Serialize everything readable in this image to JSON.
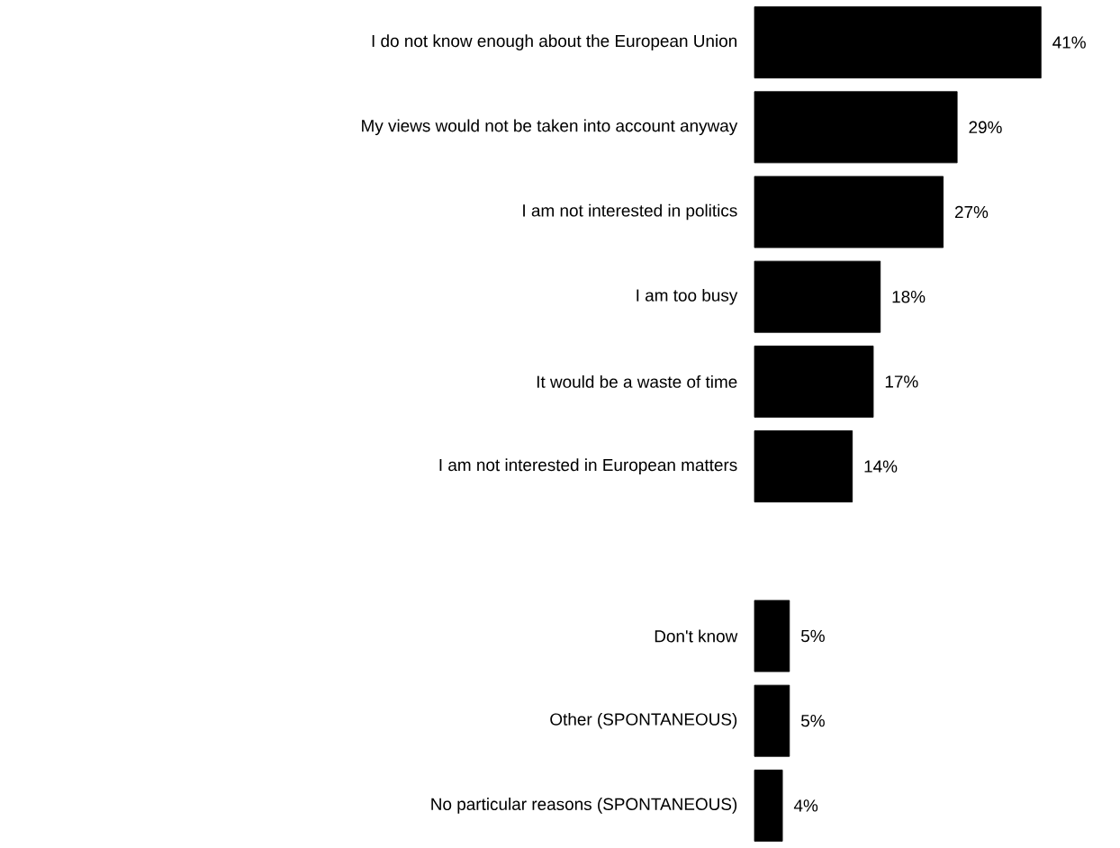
{
  "chart_data": {
    "type": "bar",
    "orientation": "horizontal",
    "color": "#000000",
    "categories": [
      "I do not know enough about the European Union",
      "My views would not be taken into account anyway",
      "I am not interested in politics",
      "I am too busy",
      "It would be a waste of time",
      "I am not interested in European matters",
      null,
      "Don't know",
      "Other (SPONTANEOUS)",
      "No particular reasons (SPONTANEOUS)"
    ],
    "values": [
      41,
      29,
      27,
      18,
      17,
      14,
      null,
      5,
      5,
      4
    ],
    "value_labels": [
      "41%",
      "29%",
      "27%",
      "18%",
      "17%",
      "14%",
      null,
      "5%",
      "5%",
      "4%"
    ]
  }
}
